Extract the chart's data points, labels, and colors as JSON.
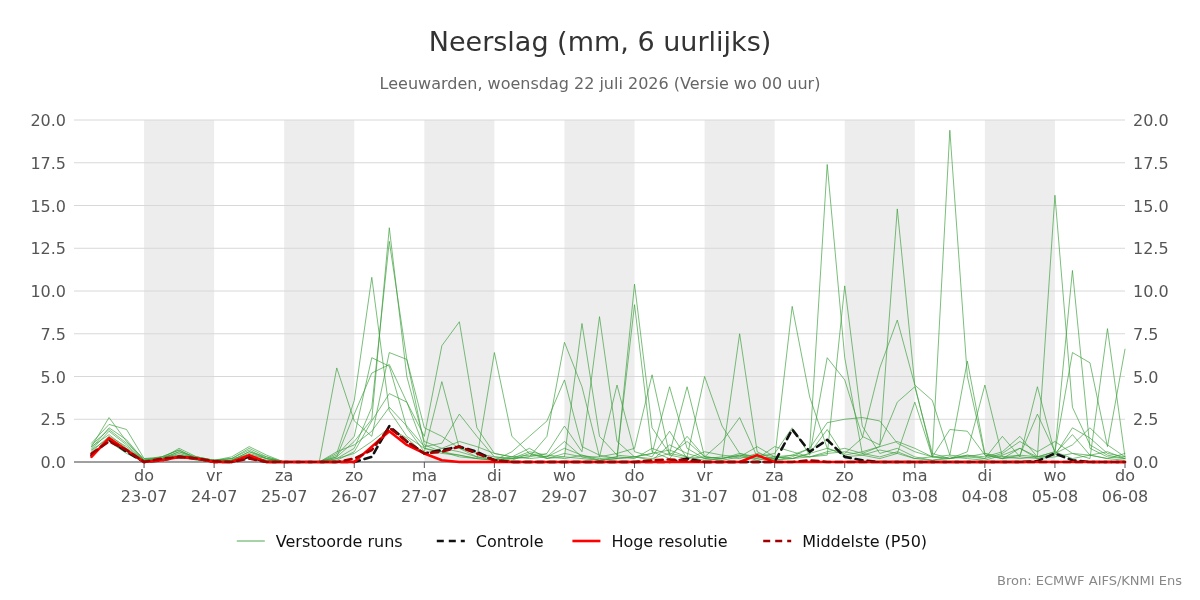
{
  "chart_data": {
    "type": "line",
    "title": "Neerslag (mm, 6 uurlijks)",
    "subtitle": "Leeuwarden, woensdag 22 juli 2026 (Versie wo 00 uur)",
    "annotations": [
      "Bron: ECMWF AIFS/KNMI Ens"
    ],
    "x": [
      "2026-07-22T06:00",
      "2026-07-22T12:00",
      "2026-07-22T18:00",
      "2026-07-23T00:00",
      "2026-07-23T06:00",
      "2026-07-23T12:00",
      "2026-07-23T18:00",
      "2026-07-24T00:00",
      "2026-07-24T06:00",
      "2026-07-24T12:00",
      "2026-07-24T18:00",
      "2026-07-25T00:00",
      "2026-07-25T06:00",
      "2026-07-25T12:00",
      "2026-07-25T18:00",
      "2026-07-26T00:00",
      "2026-07-26T06:00",
      "2026-07-26T12:00",
      "2026-07-26T18:00",
      "2026-07-27T00:00",
      "2026-07-27T06:00",
      "2026-07-27T12:00",
      "2026-07-27T18:00",
      "2026-07-28T00:00",
      "2026-07-28T06:00",
      "2026-07-28T12:00",
      "2026-07-28T18:00",
      "2026-07-29T00:00",
      "2026-07-29T06:00",
      "2026-07-29T12:00",
      "2026-07-29T18:00",
      "2026-07-30T00:00",
      "2026-07-30T06:00",
      "2026-07-30T12:00",
      "2026-07-30T18:00",
      "2026-07-31T00:00",
      "2026-07-31T06:00",
      "2026-07-31T12:00",
      "2026-07-31T18:00",
      "2026-08-01T00:00",
      "2026-08-01T06:00",
      "2026-08-01T12:00",
      "2026-08-01T18:00",
      "2026-08-02T00:00",
      "2026-08-02T06:00",
      "2026-08-02T12:00",
      "2026-08-02T18:00",
      "2026-08-03T00:00",
      "2026-08-03T06:00",
      "2026-08-03T12:00",
      "2026-08-03T18:00",
      "2026-08-04T00:00",
      "2026-08-04T06:00",
      "2026-08-04T12:00",
      "2026-08-04T18:00",
      "2026-08-05T00:00",
      "2026-08-05T06:00",
      "2026-08-05T12:00",
      "2026-08-05T18:00",
      "2026-08-06T00:00"
    ],
    "xlim": [
      "2026-07-22T00:00",
      "2026-08-06T00:00"
    ],
    "xticks": [
      {
        "value": "2026-07-23T00:00",
        "label": "do\n23-07"
      },
      {
        "value": "2026-07-24T00:00",
        "label": "vr\n24-07"
      },
      {
        "value": "2026-07-25T00:00",
        "label": "za\n25-07"
      },
      {
        "value": "2026-07-26T00:00",
        "label": "zo\n26-07"
      },
      {
        "value": "2026-07-27T00:00",
        "label": "ma\n27-07"
      },
      {
        "value": "2026-07-28T00:00",
        "label": "di\n28-07"
      },
      {
        "value": "2026-07-29T00:00",
        "label": "wo\n29-07"
      },
      {
        "value": "2026-07-30T00:00",
        "label": "do\n30-07"
      },
      {
        "value": "2026-07-31T00:00",
        "label": "vr\n31-07"
      },
      {
        "value": "2026-08-01T00:00",
        "label": "za\n01-08"
      },
      {
        "value": "2026-08-02T00:00",
        "label": "zo\n02-08"
      },
      {
        "value": "2026-08-03T00:00",
        "label": "ma\n03-08"
      },
      {
        "value": "2026-08-04T00:00",
        "label": "di\n04-08"
      },
      {
        "value": "2026-08-05T00:00",
        "label": "wo\n05-08"
      },
      {
        "value": "2026-08-06T00:00",
        "label": "do\n06-08"
      }
    ],
    "ylim": [
      0,
      20
    ],
    "yticks": [
      {
        "value": 0,
        "label": "0.0"
      },
      {
        "value": 2.5,
        "label": "2.5"
      },
      {
        "value": 5,
        "label": "5.0"
      },
      {
        "value": 7.5,
        "label": "7.5"
      },
      {
        "value": 10,
        "label": "10.0"
      },
      {
        "value": 12.5,
        "label": "12.5"
      },
      {
        "value": 15,
        "label": "15.0"
      },
      {
        "value": 17.5,
        "label": "17.5"
      },
      {
        "value": 20,
        "label": "20.0"
      }
    ],
    "y2lim": [
      0,
      20
    ],
    "y2ticks": [
      {
        "value": 0,
        "label": "0.0"
      },
      {
        "value": 2.5,
        "label": "2.5"
      },
      {
        "value": 5,
        "label": "5.0"
      },
      {
        "value": 7.5,
        "label": "7.5"
      },
      {
        "value": 10,
        "label": "10.0"
      },
      {
        "value": 12.5,
        "label": "12.5"
      },
      {
        "value": 15,
        "label": "15.0"
      },
      {
        "value": 17.5,
        "label": "17.5"
      },
      {
        "value": 20,
        "label": "20.0"
      }
    ],
    "grid": "y",
    "legend": "bottom",
    "bands": [
      {
        "axis": "x",
        "from": "2026-07-23T00:00",
        "to": "2026-07-24T00:00",
        "color": "#ededed"
      },
      {
        "axis": "x",
        "from": "2026-07-25T00:00",
        "to": "2026-07-26T00:00",
        "color": "#ededed"
      },
      {
        "axis": "x",
        "from": "2026-07-27T00:00",
        "to": "2026-07-28T00:00",
        "color": "#ededed"
      },
      {
        "axis": "x",
        "from": "2026-07-29T00:00",
        "to": "2026-07-30T00:00",
        "color": "#ededed"
      },
      {
        "axis": "x",
        "from": "2026-07-31T00:00",
        "to": "2026-08-01T00:00",
        "color": "#ededed"
      },
      {
        "axis": "x",
        "from": "2026-08-02T00:00",
        "to": "2026-08-03T00:00",
        "color": "#ededed"
      },
      {
        "axis": "x",
        "from": "2026-08-04T00:00",
        "to": "2026-08-05T00:00",
        "color": "#ededed"
      }
    ],
    "series": [
      {
        "name": "Verstoorde runs",
        "color": "#3a9e3a",
        "line_style": "solid",
        "values": [
          0.9,
          2.6,
          1.2,
          0.1,
          0.2,
          0.8,
          0.3,
          0.1,
          0.3,
          0.9,
          0.4,
          0,
          0,
          0,
          0.5,
          3.6,
          10.8,
          3.0,
          1.5,
          0.8,
          0.6,
          0.4,
          0.2,
          0.1,
          0.3,
          0.8,
          0.2,
          0.5,
          0.3,
          0.1,
          0.2,
          10.4,
          2.0,
          0.5,
          0.3,
          0.1,
          0.2,
          0.5,
          0.2,
          0.1,
          0.3,
          0.8,
          17.4,
          6.1,
          0.5,
          0.3,
          0.6,
          0.2,
          0.1,
          0.3,
          0.2,
          0.1,
          0.4,
          0.8,
          0.2,
          0.5,
          1.6,
          0.4,
          0.2,
          0.5
        ]
      },
      {
        "color": "#3a9e3a",
        "line_style": "solid",
        "values": [
          1.1,
          2.2,
          1.9,
          0.2,
          0.3,
          0.7,
          0.2,
          0,
          0.1,
          0.6,
          0.2,
          0,
          0,
          0,
          0.3,
          1.2,
          2.5,
          13.7,
          5.0,
          1.2,
          0.8,
          0.6,
          0.3,
          0.2,
          0.1,
          0.5,
          0.2,
          0.3,
          8.1,
          1.5,
          0.4,
          0.3,
          0.5,
          4.4,
          0.8,
          0.2,
          0.1,
          0.3,
          0.2,
          0.9,
          0.6,
          0.3,
          0.4,
          10.3,
          2.1,
          0.5,
          0.8,
          0.3,
          0.1,
          0.2,
          0.3,
          0.5,
          0.2,
          0.8,
          0.3,
          15.6,
          3.2,
          1.0,
          0.4,
          0.2
        ]
      },
      {
        "color": "#3a9e3a",
        "line_style": "solid",
        "values": [
          0.7,
          1.8,
          1.0,
          0.1,
          0.2,
          0.6,
          0.3,
          0.1,
          0.2,
          0.8,
          0.3,
          0,
          0,
          0,
          0.2,
          0.8,
          3.2,
          12.9,
          6.0,
          2.0,
          1.5,
          0.8,
          0.5,
          0.3,
          0.2,
          0.3,
          0.5,
          2.1,
          0.6,
          8.5,
          1.2,
          0.3,
          0.2,
          0.5,
          4.4,
          0.3,
          0.2,
          0.4,
          0.1,
          0.3,
          0.2,
          0.5,
          0.8,
          0.4,
          0.6,
          0.9,
          14.8,
          4.5,
          0.3,
          0.2,
          0.4,
          0.3,
          0.6,
          1.5,
          0.3,
          0.6,
          11.2,
          0.8,
          0.3,
          0.2
        ]
      },
      {
        "color": "#3a9e3a",
        "line_style": "solid",
        "values": [
          0.8,
          2.0,
          1.3,
          0.1,
          0.3,
          0.7,
          0.2,
          0.1,
          0.2,
          0.7,
          0.2,
          0,
          0,
          0,
          5.5,
          2.4,
          1.5,
          6.4,
          6.0,
          1.0,
          0.6,
          0.3,
          0.2,
          6.4,
          1.5,
          0.5,
          0.3,
          0.2,
          0.4,
          0.1,
          0.3,
          9.2,
          0.6,
          0.2,
          1.5,
          0.3,
          0.2,
          7.5,
          0.6,
          0.1,
          0.2,
          0.3,
          0.5,
          0.6,
          0.4,
          0.7,
          0.5,
          0.2,
          0.3,
          19.4,
          5.0,
          0.4,
          0.2,
          0.3,
          0.2,
          0.3,
          0.5,
          0.2,
          7.8,
          0.3
        ]
      },
      {
        "color": "#3a9e3a",
        "line_style": "solid",
        "values": [
          0.6,
          1.5,
          0.9,
          0.1,
          0.2,
          0.5,
          0.2,
          0,
          0.1,
          0.5,
          0.2,
          0,
          0,
          0,
          0.4,
          1.5,
          6.1,
          5.6,
          2.0,
          0.6,
          4.7,
          0.8,
          0.3,
          0.1,
          0.6,
          1.5,
          2.4,
          4.8,
          0.9,
          0.4,
          0.2,
          0.3,
          0.5,
          0.7,
          0.3,
          5.0,
          2.1,
          0.5,
          0.3,
          0.2,
          9.1,
          3.8,
          0.8,
          0.5,
          1.4,
          5.5,
          8.3,
          4.5,
          3.6,
          0.4,
          5.9,
          0.5,
          0.3,
          0.2,
          0.3,
          0.6,
          0.2,
          0.4,
          0.2,
          0.1
        ]
      },
      {
        "color": "#3a9e3a",
        "line_style": "solid",
        "values": [
          1.0,
          1.9,
          1.1,
          0.2,
          0.2,
          0.6,
          0.2,
          0.1,
          0.1,
          0.6,
          0.3,
          0,
          0,
          0,
          0.3,
          2.8,
          5.2,
          5.7,
          3.5,
          1.5,
          6.8,
          8.2,
          2.0,
          0.5,
          0.3,
          0.4,
          0.3,
          1.2,
          0.3,
          0.3,
          0.5,
          0.8,
          5.1,
          0.4,
          0.2,
          0.3,
          1.2,
          2.6,
          0.3,
          0.5,
          2.0,
          0.4,
          6.1,
          4.8,
          1.5,
          1.0,
          3.5,
          4.4,
          0.5,
          0.2,
          0.6,
          4.5,
          0.3,
          0.4,
          2.8,
          0.6,
          6.4,
          5.8,
          0.9,
          6.6
        ]
      },
      {
        "color": "#3a9e3a",
        "line_style": "solid",
        "values": [
          0.9,
          1.6,
          0.8,
          0.1,
          0.3,
          0.4,
          0.3,
          0.1,
          0.2,
          0.4,
          0.2,
          0,
          0,
          0,
          0.6,
          1.0,
          1.8,
          3.2,
          2.1,
          0.9,
          1.1,
          2.8,
          1.5,
          0.3,
          0.2,
          0.3,
          1.5,
          7.0,
          4.4,
          0.3,
          4.5,
          0.6,
          0.3,
          1.8,
          0.2,
          0.6,
          0.4,
          0.3,
          0.9,
          0.3,
          0.2,
          0.5,
          1.9,
          0.3,
          0.4,
          0.2,
          0.5,
          3.5,
          0.3,
          0.2,
          0.4,
          0.2,
          1.5,
          0.3,
          4.4,
          0.5,
          1.0,
          2.0,
          1.0,
          0.3
        ]
      },
      {
        "color": "#3a9e3a",
        "line_style": "solid",
        "values": [
          0.7,
          1.4,
          0.6,
          0.1,
          0.1,
          0.3,
          0.2,
          0,
          0.1,
          0.3,
          0.1,
          0,
          0,
          0,
          0.2,
          0.5,
          1.2,
          2.0,
          1.4,
          0.5,
          0.8,
          1.2,
          0.9,
          0.5,
          0.3,
          0.2,
          0.3,
          0.8,
          0.4,
          0.2,
          0.3,
          0.2,
          0.8,
          0.4,
          1.2,
          0.3,
          0.2,
          0.4,
          0.3,
          0.2,
          0.4,
          0.3,
          0.6,
          0.8,
          0.5,
          0.9,
          1.2,
          0.8,
          0.3,
          0.4,
          0.3,
          0.2,
          0.5,
          1.2,
          0.6,
          1.2,
          0.5,
          0.4,
          0.6,
          0.2
        ]
      },
      {
        "color": "#3a9e3a",
        "line_style": "solid",
        "values": [
          0.5,
          1.2,
          0.5,
          0,
          0.1,
          0.4,
          0.1,
          0,
          0.1,
          0.3,
          0.1,
          0,
          0,
          0,
          0.1,
          0.6,
          2.4,
          4.0,
          3.5,
          0.8,
          0.5,
          0.4,
          0.2,
          0.1,
          0.2,
          0.6,
          0.4,
          0.3,
          0.2,
          0.1,
          0.2,
          0.3,
          0.1,
          1.0,
          0.5,
          0.2,
          0.3,
          0.2,
          0.5,
          0.3,
          0.4,
          0.8,
          2.3,
          2.5,
          2.6,
          2.4,
          1.1,
          0.6,
          0.3,
          1.9,
          1.8,
          0.4,
          0.2,
          0.4,
          0.3,
          0.4,
          2.0,
          1.4,
          0.5,
          0.3
        ]
      },
      {
        "name": "Controle",
        "color": "#111111",
        "line_style": "dashed",
        "values": [
          0.4,
          1.3,
          0.6,
          0,
          0.1,
          0.3,
          0.2,
          0,
          0,
          0.3,
          0,
          0,
          0,
          0,
          0,
          0,
          0.3,
          2.1,
          1.2,
          0.5,
          0.7,
          0.9,
          0.6,
          0.1,
          0,
          0,
          0,
          0,
          0,
          0,
          0,
          0,
          0,
          0,
          0.2,
          0,
          0,
          0,
          0,
          0,
          1.9,
          0.6,
          1.3,
          0.3,
          0.1,
          0,
          0,
          0,
          0,
          0,
          0,
          0,
          0,
          0,
          0.05,
          0.5,
          0.1,
          0,
          0,
          0
        ]
      },
      {
        "name": "Hoge resolutie",
        "color": "#ff0000",
        "line_style": "solid",
        "values": [
          0.3,
          1.4,
          0.7,
          0,
          0.1,
          0.3,
          0.2,
          0,
          0,
          0.4,
          0,
          0,
          0,
          0,
          0,
          0,
          0.9,
          1.8,
          1.0,
          0.5,
          0.1,
          0,
          0,
          0,
          0,
          0,
          0,
          0,
          0,
          0,
          0,
          0,
          0,
          0,
          0,
          0,
          0,
          0,
          0.4,
          0,
          0,
          0,
          0,
          0,
          0,
          0,
          0,
          0,
          0,
          0,
          0,
          0,
          0,
          0,
          0,
          0,
          0,
          0,
          0,
          0
        ]
      },
      {
        "name": "Middelste (P50)",
        "color": "#a00000",
        "line_style": "dashed",
        "values": [
          0.5,
          1.2,
          0.7,
          0,
          0.2,
          0.3,
          0.2,
          0.05,
          0,
          0.2,
          0,
          0,
          0,
          0,
          0,
          0.2,
          0.7,
          2.0,
          1.2,
          0.5,
          0.6,
          0.9,
          0.5,
          0.1,
          0,
          0,
          0,
          0,
          0,
          0,
          0,
          0,
          0.1,
          0.15,
          0.1,
          0,
          0,
          0,
          0,
          0,
          0,
          0.1,
          0,
          0,
          0,
          0,
          0,
          0,
          0,
          0,
          0,
          0,
          0,
          0,
          0,
          0,
          0,
          0,
          0,
          0
        ]
      }
    ]
  }
}
